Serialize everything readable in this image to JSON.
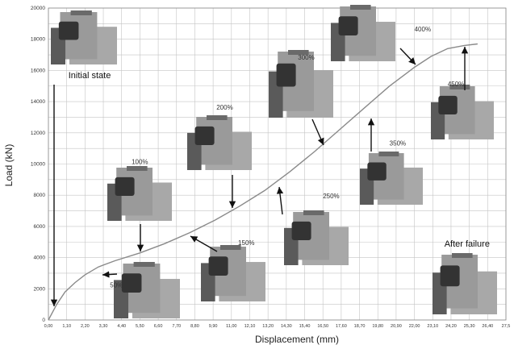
{
  "chart_data": {
    "type": "line",
    "xlabel": "Displacement (mm)",
    "ylabel": "Load (kN)",
    "xlim": [
      0,
      27.5
    ],
    "ylim": [
      0,
      20000
    ],
    "grid": true,
    "x_ticks": [
      "0,00",
      "1,10",
      "2,20",
      "3,30",
      "4,40",
      "5,50",
      "6,60",
      "7,70",
      "8,80",
      "9,90",
      "11,00",
      "12,10",
      "13,20",
      "14,30",
      "15,40",
      "16,50",
      "17,60",
      "18,70",
      "19,80",
      "20,90",
      "22,00",
      "23,10",
      "24,20",
      "25,30",
      "26,40",
      "27,5"
    ],
    "y_ticks": [
      "0",
      "2000",
      "4000",
      "6000",
      "8000",
      "10000",
      "12000",
      "14000",
      "16000",
      "18000",
      "20000"
    ],
    "series": [
      {
        "x": [
          0,
          0.5,
          1.0,
          1.6,
          2.2,
          3.0,
          4.0,
          5.5,
          7.0,
          8.5,
          10.0,
          11.5,
          13.0,
          14.5,
          16.0,
          17.5,
          19.0,
          20.5,
          22.0,
          23.0,
          24.0,
          25.0,
          25.8
        ],
        "y": [
          0,
          1000,
          1800,
          2400,
          2900,
          3400,
          3800,
          4300,
          4900,
          5600,
          6400,
          7300,
          8300,
          9500,
          10800,
          12200,
          13600,
          15000,
          16200,
          16900,
          17400,
          17600,
          17700
        ]
      }
    ],
    "annotations": [
      {
        "text": "Initial state",
        "x": 1.2,
        "y": 15500
      },
      {
        "text": "50%",
        "x": 3.7,
        "y": 2100
      },
      {
        "text": "100%",
        "x": 5.0,
        "y": 10000
      },
      {
        "text": "150%",
        "x": 11.4,
        "y": 4800
      },
      {
        "text": "200%",
        "x": 10.1,
        "y": 13500
      },
      {
        "text": "250%",
        "x": 16.5,
        "y": 7800
      },
      {
        "text": "300%",
        "x": 15.0,
        "y": 16700
      },
      {
        "text": "350%",
        "x": 20.5,
        "y": 11200
      },
      {
        "text": "400%",
        "x": 22.0,
        "y": 18500
      },
      {
        "text": "450%",
        "x": 24.0,
        "y": 15000
      },
      {
        "text": "After failure",
        "x": 23.8,
        "y": 4700
      }
    ]
  }
}
